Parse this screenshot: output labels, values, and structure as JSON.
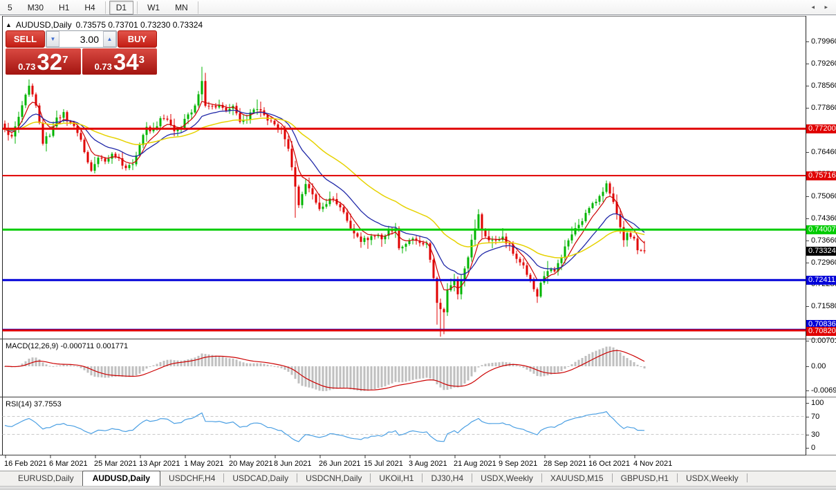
{
  "toolbar": {
    "timeframes": [
      {
        "label": "5",
        "active": false
      },
      {
        "label": "M30",
        "active": false
      },
      {
        "label": "H1",
        "active": false
      },
      {
        "label": "H4",
        "active": false
      },
      {
        "label": "D1",
        "active": true
      },
      {
        "label": "W1",
        "active": false
      },
      {
        "label": "MN",
        "active": false
      }
    ]
  },
  "chart_header": {
    "collapse_icon": "▲",
    "title": "AUDUSD,Daily",
    "ohlc": "0.73575 0.73701 0.73230 0.73324"
  },
  "trade_panel": {
    "sell_label": "SELL",
    "buy_label": "BUY",
    "volume": "3.00",
    "spin_down_icon": "▼",
    "spin_up_icon": "▲",
    "sell_prefix": "0.73",
    "sell_big": "32",
    "sell_sup": "7",
    "buy_prefix": "0.73",
    "buy_big": "34",
    "buy_sup": "3"
  },
  "chart_data": {
    "type": "candlestick",
    "symbol": "AUDUSD",
    "timeframe": "Daily",
    "ohlc_display": {
      "open": "0.73575",
      "high": "0.73701",
      "low": "0.73230",
      "close": "0.73324"
    },
    "colors": {
      "bull": "#00b400",
      "bear": "#e00000",
      "ma_fast": "#cc0000",
      "ma_mid": "#2028a8",
      "ma_slow": "#e6d200",
      "macd_bar": "#bfbfbf",
      "macd_signal": "#cc0000",
      "rsi_line": "#4a9fe3",
      "rsi_level": "#c8c8c8",
      "level_red": "#e00000",
      "level_green": "#00cc00",
      "level_blue": "#0000d8",
      "current_badge": "#000000"
    },
    "price_axis": {
      "ticks": [
        "0.79960",
        "0.79260",
        "0.78560",
        "0.77860",
        "0.77160",
        "0.76460",
        "0.75760",
        "0.75060",
        "0.74360",
        "0.73660",
        "0.72960",
        "0.72280",
        "0.71580",
        "0.70880"
      ]
    },
    "levels": [
      {
        "price": 0.772,
        "label": "0.77200",
        "color": "#e00000",
        "width": 3,
        "badge_dy": 0
      },
      {
        "price": 0.75716,
        "label": "0.75716",
        "color": "#e00000",
        "width": 2,
        "badge_dy": 0
      },
      {
        "price": 0.74007,
        "label": "0.74007",
        "color": "#00cc00",
        "width": 3,
        "badge_dy": 0
      },
      {
        "price": 0.72411,
        "label": "0.72411",
        "color": "#0000d8",
        "width": 3,
        "badge_dy": 0
      },
      {
        "price": 0.70836,
        "label": "0.70836",
        "color": "#0000d8",
        "width": 3,
        "badge_dy": -8
      },
      {
        "price": 0.7082,
        "label": "0.70820",
        "color": "#e00000",
        "width": 3,
        "badge_dy": 2
      }
    ],
    "current_price": {
      "value": 0.73324,
      "label": "0.73324"
    },
    "x_axis_dates": [
      "16 Feb 2021",
      "6 Mar 2021",
      "25 Mar 2021",
      "13 Apr 2021",
      "1 May 2021",
      "20 May 2021",
      "8 Jun 2021",
      "26 Jun 2021",
      "15 Jul 2021",
      "3 Aug 2021",
      "21 Aug 2021",
      "9 Sep 2021",
      "28 Sep 2021",
      "16 Oct 2021",
      "4 Nov 2021"
    ],
    "candle_count": 186,
    "close_path_anchors": [
      [
        0,
        0.7722
      ],
      [
        2,
        0.769
      ],
      [
        4,
        0.7755
      ],
      [
        7,
        0.7854
      ],
      [
        9,
        0.7799
      ],
      [
        11,
        0.7679
      ],
      [
        13,
        0.7701
      ],
      [
        15,
        0.7755
      ],
      [
        17,
        0.7766
      ],
      [
        19,
        0.7734
      ],
      [
        21,
        0.7712
      ],
      [
        23,
        0.7646
      ],
      [
        25,
        0.7591
      ],
      [
        27,
        0.7624
      ],
      [
        29,
        0.7613
      ],
      [
        31,
        0.7635
      ],
      [
        33,
        0.7624
      ],
      [
        35,
        0.7591
      ],
      [
        37,
        0.7613
      ],
      [
        39,
        0.7668
      ],
      [
        41,
        0.7723
      ],
      [
        43,
        0.7712
      ],
      [
        45,
        0.7755
      ],
      [
        47,
        0.7744
      ],
      [
        49,
        0.7712
      ],
      [
        51,
        0.7723
      ],
      [
        53,
        0.7766
      ],
      [
        55,
        0.7788
      ],
      [
        57,
        0.7876
      ],
      [
        58,
        0.7799
      ],
      [
        60,
        0.7788
      ],
      [
        62,
        0.7799
      ],
      [
        64,
        0.7777
      ],
      [
        66,
        0.7788
      ],
      [
        68,
        0.7744
      ],
      [
        70,
        0.7755
      ],
      [
        72,
        0.7777
      ],
      [
        74,
        0.7777
      ],
      [
        76,
        0.7744
      ],
      [
        78,
        0.7734
      ],
      [
        80,
        0.7712
      ],
      [
        82,
        0.7657
      ],
      [
        84,
        0.7537
      ],
      [
        85,
        0.7482
      ],
      [
        87,
        0.7548
      ],
      [
        89,
        0.7515
      ],
      [
        91,
        0.7471
      ],
      [
        93,
        0.7482
      ],
      [
        95,
        0.7504
      ],
      [
        97,
        0.7471
      ],
      [
        99,
        0.7427
      ],
      [
        101,
        0.7384
      ],
      [
        103,
        0.7362
      ],
      [
        105,
        0.7373
      ],
      [
        107,
        0.7384
      ],
      [
        109,
        0.7373
      ],
      [
        111,
        0.7395
      ],
      [
        113,
        0.7406
      ],
      [
        114,
        0.734
      ],
      [
        116,
        0.7362
      ],
      [
        118,
        0.7373
      ],
      [
        120,
        0.7362
      ],
      [
        122,
        0.7351
      ],
      [
        124,
        0.7253
      ],
      [
        125,
        0.7165
      ],
      [
        127,
        0.7143
      ],
      [
        128,
        0.7209
      ],
      [
        130,
        0.7242
      ],
      [
        131,
        0.7198
      ],
      [
        133,
        0.7274
      ],
      [
        135,
        0.7362
      ],
      [
        137,
        0.7449
      ],
      [
        138,
        0.7395
      ],
      [
        140,
        0.7373
      ],
      [
        142,
        0.7362
      ],
      [
        144,
        0.7373
      ],
      [
        146,
        0.7351
      ],
      [
        148,
        0.7307
      ],
      [
        150,
        0.7285
      ],
      [
        152,
        0.7242
      ],
      [
        154,
        0.7191
      ],
      [
        155,
        0.7231
      ],
      [
        157,
        0.7263
      ],
      [
        159,
        0.7274
      ],
      [
        161,
        0.7318
      ],
      [
        163,
        0.7373
      ],
      [
        165,
        0.7406
      ],
      [
        167,
        0.7427
      ],
      [
        169,
        0.7471
      ],
      [
        171,
        0.7493
      ],
      [
        173,
        0.7526
      ],
      [
        174,
        0.7541
      ],
      [
        176,
        0.7493
      ],
      [
        177,
        0.7449
      ],
      [
        179,
        0.7373
      ],
      [
        180,
        0.7395
      ],
      [
        182,
        0.7373
      ],
      [
        183,
        0.734
      ],
      [
        185,
        0.73324
      ]
    ],
    "wick_overrides": [
      {
        "i": 57,
        "high": 0.7916
      },
      {
        "i": 84,
        "low": 0.7438
      },
      {
        "i": 125,
        "low": 0.71
      },
      {
        "i": 126,
        "low": 0.7062
      },
      {
        "i": 127,
        "low": 0.707
      },
      {
        "i": 174,
        "high": 0.7556
      }
    ],
    "moving_averages": [
      {
        "period": 6,
        "color": "#cc0000",
        "width": 1.2
      },
      {
        "period": 16,
        "color": "#2028a8",
        "width": 1.3
      },
      {
        "period": 40,
        "color": "#e6d200",
        "width": 1.5
      }
    ],
    "macd": {
      "label": "MACD(12,26,9)",
      "values_text": "-0.000711 0.001771",
      "params": [
        12,
        26,
        9
      ],
      "axis_ticks": [
        "0.007015",
        "0.00",
        "-0.006923"
      ]
    },
    "rsi": {
      "label": "RSI(14)",
      "value_text": "37.7553",
      "period": 14,
      "levels": [
        70,
        30
      ],
      "axis_ticks": [
        "100",
        "70",
        "30",
        "0"
      ]
    }
  },
  "tabs": {
    "items": [
      "EURUSD,Daily",
      "AUDUSD,Daily",
      "USDCHF,H4",
      "USDCAD,Daily",
      "USDCNH,Daily",
      "UKOil,H1",
      "DJ30,H4",
      "USDX,Weekly",
      "XAUUSD,M15",
      "GBPUSD,H1",
      "USDX,Weekly"
    ],
    "active_index": 1,
    "scroll_icons": "◂ ▸"
  }
}
